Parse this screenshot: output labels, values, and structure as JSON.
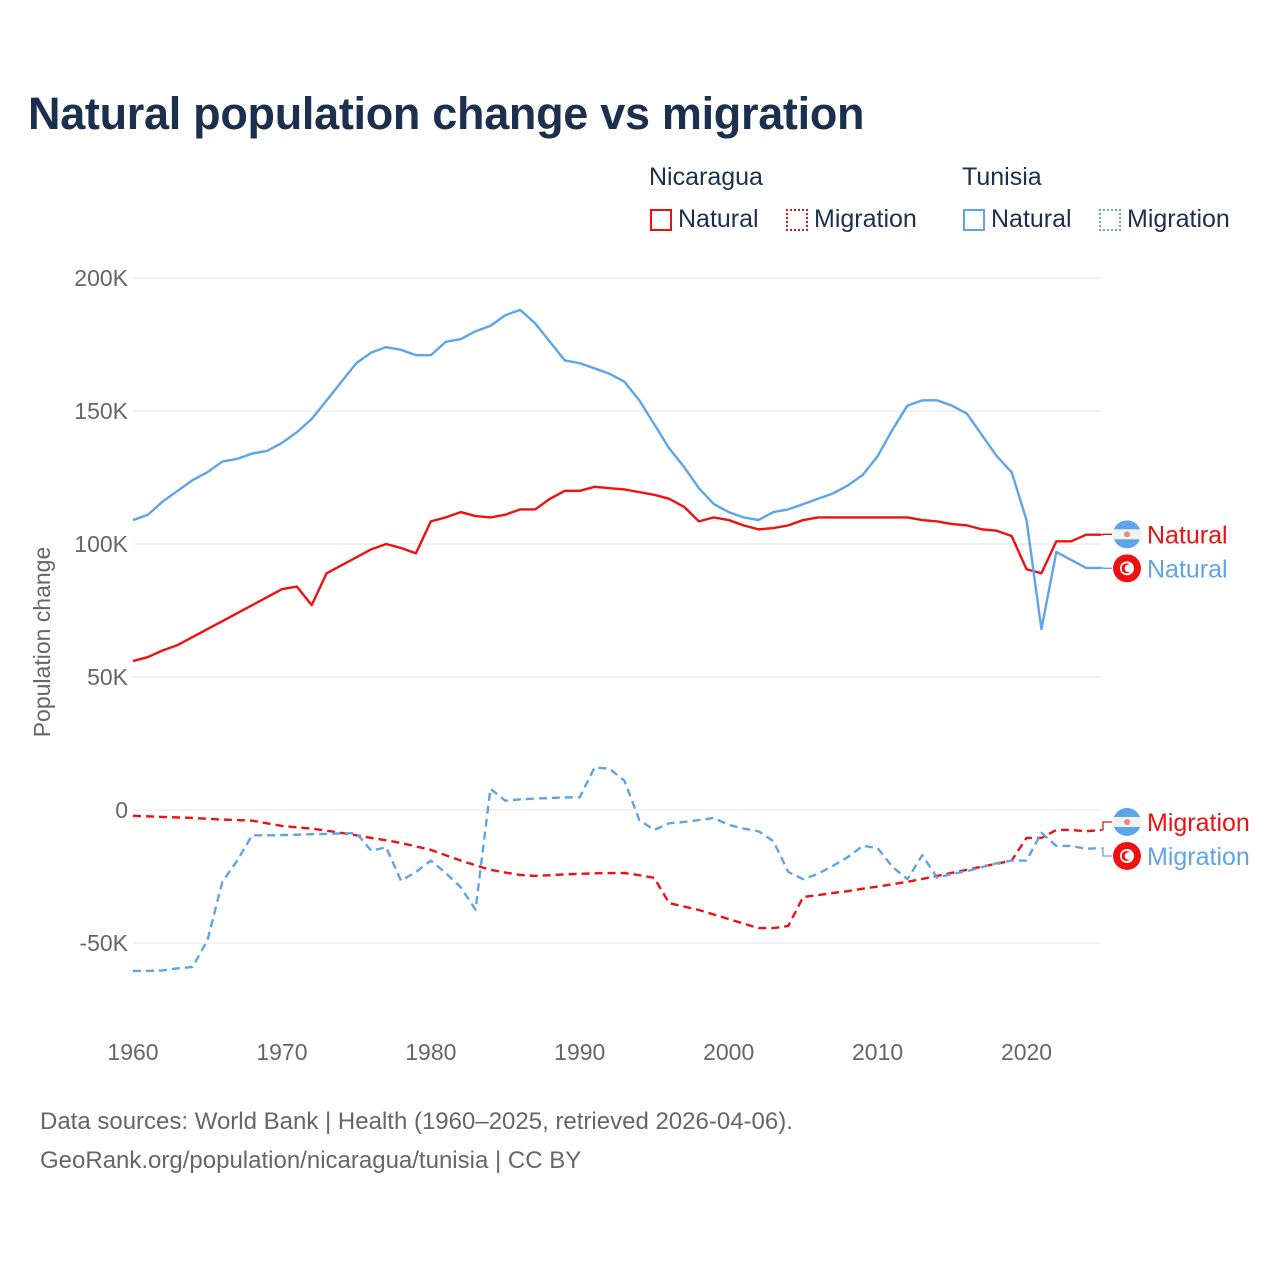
{
  "chart_data": {
    "type": "line",
    "title": "Natural population change vs migration",
    "ylabel": "Population change",
    "xlabel": "",
    "xlim": [
      1960,
      2025
    ],
    "ylim": [
      -70000,
      200000
    ],
    "x_ticks": [
      1960,
      1970,
      1980,
      1990,
      2000,
      2010,
      2020
    ],
    "y_ticks": [
      -50000,
      0,
      50000,
      100000,
      150000,
      200000
    ],
    "y_tick_labels": [
      "-50K",
      "0",
      "50K",
      "100K",
      "150K",
      "200K"
    ],
    "grid": true,
    "legend": {
      "placement": "top-right",
      "groups": [
        {
          "country": "Nicaragua",
          "items": [
            "Natural",
            "Migration"
          ]
        },
        {
          "country": "Tunisia",
          "items": [
            "Natural",
            "Migration"
          ]
        }
      ]
    },
    "x_start": 1960,
    "series": [
      {
        "name": "Natural",
        "country": "Nicaragua",
        "color": "#ee1111",
        "dash": false,
        "values_k": [
          56,
          57.5,
          60,
          62,
          65,
          68,
          71,
          74,
          77,
          80,
          83,
          84,
          77,
          89,
          92,
          95,
          98,
          100,
          98.5,
          96.5,
          108.5,
          110,
          112,
          110.5,
          110,
          111,
          113,
          113,
          117,
          120,
          120,
          121.5,
          121,
          120.5,
          119.5,
          118.5,
          117,
          114,
          108.5,
          110,
          109,
          107,
          105.5,
          106,
          107,
          109,
          110,
          110,
          110,
          110,
          110,
          110,
          110,
          109,
          108.5,
          107.5,
          107,
          105.5,
          105,
          103,
          90.5,
          89,
          101,
          101,
          103.5,
          103.5
        ]
      },
      {
        "name": "Natural",
        "country": "Tunisia",
        "color": "#5ea4e8",
        "dash": false,
        "values_k": [
          109,
          111,
          116,
          120,
          124,
          127,
          131,
          132,
          134,
          135,
          138,
          142,
          147,
          154,
          161,
          168,
          172,
          174,
          173,
          171,
          171,
          176,
          177,
          180,
          182,
          186,
          188,
          183,
          176,
          169,
          168,
          166,
          164,
          161,
          154,
          145,
          136,
          129,
          121,
          115,
          112,
          110,
          109,
          112,
          113,
          115,
          117,
          119,
          122,
          126,
          133,
          143,
          152,
          154,
          154,
          152,
          149,
          141,
          133,
          127,
          109,
          68,
          97,
          94,
          91,
          91
        ]
      },
      {
        "name": "Migration",
        "country": "Nicaragua",
        "color": "#ee1111",
        "dash": true,
        "values_k": [
          -2.2,
          -2.4,
          -2.6,
          -2.8,
          -3,
          -3.3,
          -3.6,
          -3.8,
          -4,
          -5,
          -6,
          -6.5,
          -7,
          -7.8,
          -8.6,
          -9.5,
          -10.5,
          -11.4,
          -12.4,
          -13.7,
          -15,
          -17,
          -19,
          -20.8,
          -22.5,
          -23.5,
          -24.4,
          -24.8,
          -24.5,
          -24.2,
          -24,
          -23.8,
          -23.7,
          -23.7,
          -24.5,
          -25.5,
          -35,
          -36.3,
          -37.6,
          -39.3,
          -41,
          -42.7,
          -44.4,
          -44.4,
          -43.6,
          -32.7,
          -32,
          -31.2,
          -30.5,
          -29.6,
          -28.8,
          -27.9,
          -27,
          -25.9,
          -24.8,
          -23.6,
          -22.5,
          -21.3,
          -20.2,
          -19,
          -10.5,
          -10.5,
          -7.5,
          -7.5,
          -8,
          -7.5
        ]
      },
      {
        "name": "Migration",
        "country": "Tunisia",
        "color": "#5ea4e8",
        "dash": true,
        "values_k": [
          -60.5,
          -60.5,
          -60.3,
          -59.5,
          -59,
          -49,
          -27,
          -19,
          -9.5,
          -9.5,
          -9.4,
          -9.3,
          -9.1,
          -9,
          -8.8,
          -8.7,
          -15.3,
          -14,
          -26.6,
          -23.3,
          -19,
          -23.7,
          -29,
          -37.5,
          8,
          3.5,
          4,
          4.3,
          4.5,
          4.7,
          4.8,
          16,
          15.5,
          11,
          -3.8,
          -7.5,
          -5,
          -4.5,
          -3.8,
          -3,
          -5.6,
          -7,
          -8,
          -11.7,
          -23.3,
          -26,
          -24,
          -21,
          -17.7,
          -13.5,
          -14.3,
          -21.4,
          -26,
          -17,
          -25.5,
          -24,
          -23,
          -21.5,
          -20,
          -19,
          -19,
          -8.6,
          -13.5,
          -13.5,
          -14.6,
          -14.3
        ]
      }
    ]
  },
  "legend": {
    "nicaragua": "Nicaragua",
    "tunisia": "Tunisia",
    "natural": "Natural",
    "migration": "Migration"
  },
  "footer": {
    "line1": "Data sources: World Bank | Health (1960–2025, retrieved 2026-04-06).",
    "line2": "GeoRank.org/population/nicaragua/tunisia | CC BY"
  },
  "colors": {
    "nicaragua": "#ee1111",
    "tunisia": "#5ea4e8",
    "title": "#1b2f4e"
  }
}
